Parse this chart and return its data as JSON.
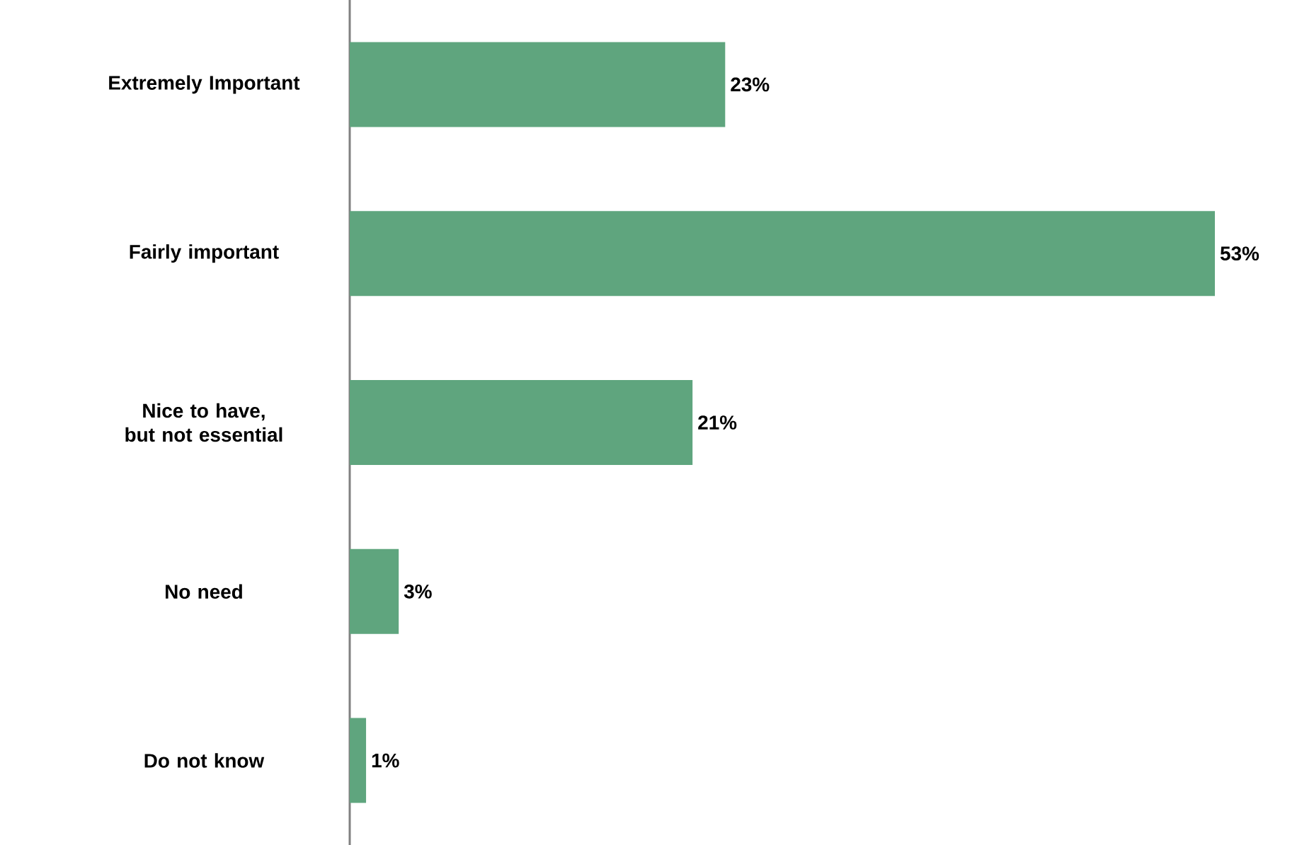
{
  "chart_data": {
    "type": "bar",
    "orientation": "horizontal",
    "categories": [
      "Extremely Important",
      "Fairly important",
      "Nice to have, but not essential",
      "No need",
      "Do not know"
    ],
    "values": [
      23,
      53,
      21,
      3,
      1
    ],
    "value_labels": [
      "23%",
      "53%",
      "21%",
      "3%",
      "1%"
    ],
    "color": "#5fa57e"
  }
}
